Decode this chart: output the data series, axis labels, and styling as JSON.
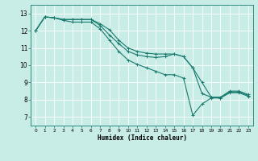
{
  "xlabel": "Humidex (Indice chaleur)",
  "bg_color": "#c8ece6",
  "grid_color": "#ffffff",
  "line_color": "#1a7a6e",
  "xlim": [
    -0.5,
    23.5
  ],
  "ylim": [
    6.5,
    13.5
  ],
  "xticks": [
    0,
    1,
    2,
    3,
    4,
    5,
    6,
    7,
    8,
    9,
    10,
    11,
    12,
    13,
    14,
    15,
    16,
    17,
    18,
    19,
    20,
    21,
    22,
    23
  ],
  "yticks": [
    7,
    8,
    9,
    10,
    11,
    12,
    13
  ],
  "line1_x": [
    0,
    1,
    2,
    3,
    4,
    5,
    6,
    7,
    8,
    9,
    10,
    11,
    12,
    13,
    14,
    15,
    16,
    17,
    18,
    19,
    20,
    21,
    22,
    23
  ],
  "line1_y": [
    12.0,
    12.8,
    12.75,
    12.65,
    12.65,
    12.65,
    12.65,
    12.4,
    12.05,
    11.45,
    11.0,
    10.8,
    10.7,
    10.65,
    10.65,
    10.65,
    10.5,
    9.85,
    9.0,
    8.15,
    8.15,
    8.5,
    8.5,
    8.3
  ],
  "line2_x": [
    0,
    1,
    2,
    3,
    4,
    5,
    6,
    7,
    8,
    9,
    10,
    11,
    12,
    13,
    14,
    15,
    16,
    17,
    18,
    19,
    20,
    21,
    22,
    23
  ],
  "line2_y": [
    12.0,
    12.8,
    12.75,
    12.65,
    12.65,
    12.65,
    12.65,
    12.3,
    11.75,
    11.25,
    10.8,
    10.6,
    10.5,
    10.45,
    10.5,
    10.65,
    10.5,
    9.85,
    8.35,
    8.15,
    8.1,
    8.45,
    8.45,
    8.25
  ],
  "line3_x": [
    0,
    1,
    2,
    3,
    4,
    5,
    6,
    7,
    8,
    9,
    10,
    11,
    12,
    13,
    14,
    15,
    16,
    17,
    18,
    19,
    20,
    21,
    22,
    23
  ],
  "line3_y": [
    12.0,
    12.8,
    12.75,
    12.6,
    12.5,
    12.5,
    12.5,
    12.1,
    11.45,
    10.8,
    10.3,
    10.05,
    9.85,
    9.65,
    9.45,
    9.45,
    9.25,
    7.1,
    7.75,
    8.1,
    8.1,
    8.4,
    8.4,
    8.2
  ]
}
